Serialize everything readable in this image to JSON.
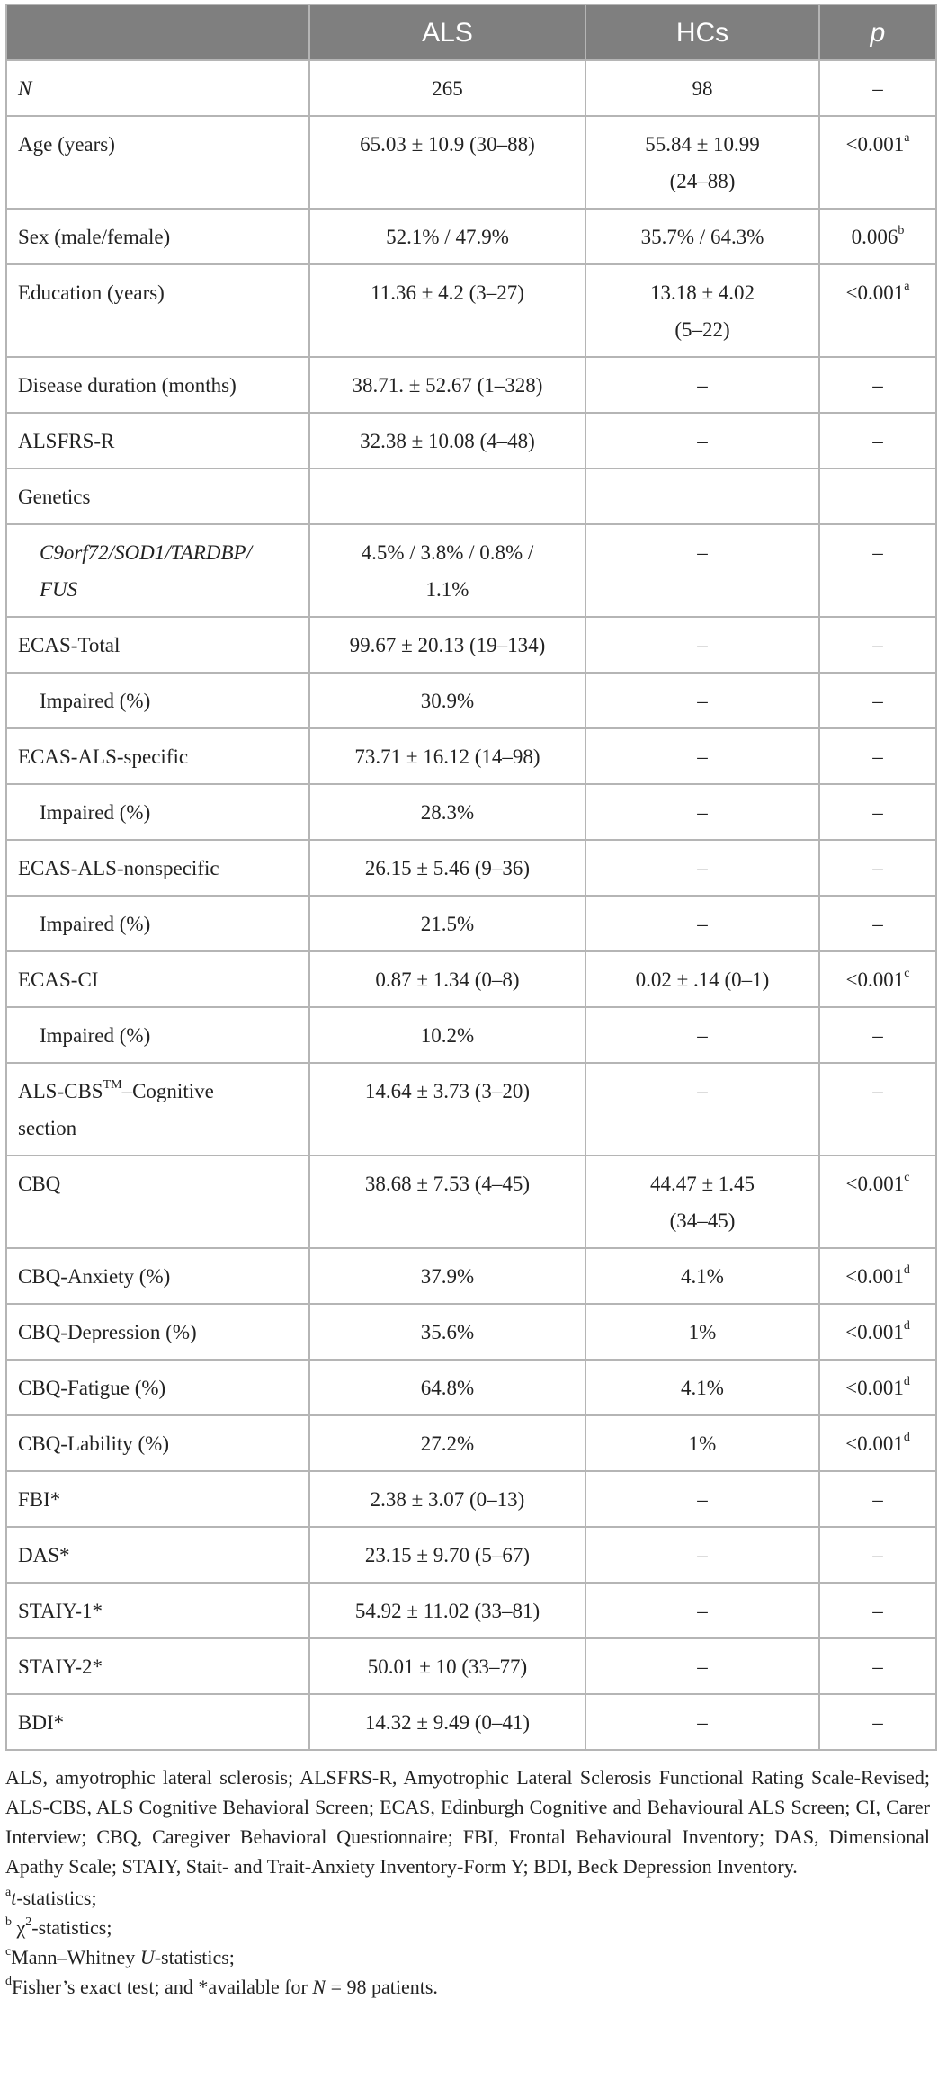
{
  "header": {
    "col0": "",
    "col1": "ALS",
    "col2": "HCs",
    "col3": "p"
  },
  "rows": [
    {
      "label": "N",
      "label_italic": true,
      "als": "265",
      "hc": "98",
      "p": "–",
      "p_sup": ""
    },
    {
      "label": "Age (years)",
      "als": "65.03 ± 10.9 (30–88)",
      "hc_line1": "55.84 ± 10.99",
      "hc_line2": "(24–88)",
      "p": "<0.001",
      "p_sup": "a"
    },
    {
      "label": "Sex (male/female)",
      "als": "52.1% / 47.9%",
      "hc": "35.7% / 64.3%",
      "p": "0.006",
      "p_sup": "b"
    },
    {
      "label": "Education (years)",
      "als": "11.36 ± 4.2 (3–27)",
      "hc_line1": "13.18 ± 4.02",
      "hc_line2": "(5–22)",
      "p": "<0.001",
      "p_sup": "a"
    },
    {
      "label": "Disease duration (months)",
      "als": "38.71. ± 52.67 (1–328)",
      "hc": "–",
      "p": "–"
    },
    {
      "label": "ALSFRS-R",
      "als": "32.38 ± 10.08 (4–48)",
      "hc": "–",
      "p": "–"
    },
    {
      "label": "Genetics",
      "als": "",
      "hc": "",
      "p": ""
    },
    {
      "label_line1": "C9orf72/SOD1/TARDBP/",
      "label_line2": "FUS",
      "als_line1": "4.5% / 3.8% / 0.8% /",
      "als_line2": "1.1%",
      "hc": "–",
      "p": "–"
    },
    {
      "label": "ECAS-Total",
      "als": "99.67 ± 20.13 (19–134)",
      "hc": "–",
      "p": "–"
    },
    {
      "label": "Impaired (%)",
      "als": "30.9%",
      "hc": "–",
      "p": "–"
    },
    {
      "label": "ECAS-ALS-specific",
      "als": "73.71 ± 16.12 (14–98)",
      "hc": "–",
      "p": "–"
    },
    {
      "label": "Impaired (%)",
      "als": "28.3%",
      "hc": "–",
      "p": "–"
    },
    {
      "label": "ECAS-ALS-nonspecific",
      "als": "26.15 ± 5.46 (9–36)",
      "hc": "–",
      "p": "–"
    },
    {
      "label": "Impaired (%)",
      "als": "21.5%",
      "hc": "–",
      "p": "–"
    },
    {
      "label": "ECAS-CI",
      "als": "0.87 ± 1.34 (0–8)",
      "hc": "0.02 ± .14 (0–1)",
      "p": "<0.001",
      "p_sup": "c"
    },
    {
      "label": "Impaired (%)",
      "als": "10.2%",
      "hc": "–",
      "p": "–"
    },
    {
      "label_pre": "ALS-CBS",
      "label_sup": "TM",
      "label_post": "–Cognitive",
      "label_line2": "section",
      "als": "14.64 ± 3.73 (3–20)",
      "hc": "–",
      "p": "–"
    },
    {
      "label": "CBQ",
      "als": "38.68 ± 7.53 (4–45)",
      "hc_line1": "44.47 ± 1.45",
      "hc_line2": "(34–45)",
      "p": "<0.001",
      "p_sup": "c"
    },
    {
      "label": "CBQ-Anxiety (%)",
      "als": "37.9%",
      "hc": "4.1%",
      "p": "<0.001",
      "p_sup": "d"
    },
    {
      "label": "CBQ-Depression (%)",
      "als": "35.6%",
      "hc": "1%",
      "p": "<0.001",
      "p_sup": "d"
    },
    {
      "label": "CBQ-Fatigue (%)",
      "als": "64.8%",
      "hc": "4.1%",
      "p": "<0.001",
      "p_sup": "d"
    },
    {
      "label": "CBQ-Lability (%)",
      "als": "27.2%",
      "hc": "1%",
      "p": "<0.001",
      "p_sup": "d"
    },
    {
      "label": "FBI*",
      "als": "2.38 ± 3.07 (0–13)",
      "hc": "–",
      "p": "–"
    },
    {
      "label": "DAS*",
      "als": "23.15 ± 9.70 (5–67)",
      "hc": "–",
      "p": "–"
    },
    {
      "label": "STAIY-1*",
      "als": "54.92 ± 11.02 (33–81)",
      "hc": "–",
      "p": "–"
    },
    {
      "label": "STAIY-2*",
      "als": "50.01 ± 10 (33–77)",
      "hc": "–",
      "p": "–"
    },
    {
      "label": "BDI*",
      "als": "14.32 ± 9.49 (0–41)",
      "hc": "–",
      "p": "–"
    }
  ],
  "footnotes": {
    "legend": "ALS, amyotrophic lateral sclerosis; ALSFRS-R, Amyotrophic Lateral Sclerosis Functional Rating Scale-Revised; ALS-CBS, ALS Cognitive Behavioral Screen; ECAS, Edinburgh Cognitive and Behavioural ALS Screen; CI, Carer Interview; CBQ, Caregiver Behavioral Questionnaire; FBI, Frontal Behavioural Inventory; DAS, Dimensional Apathy Scale; STAIY, Stait- and Trait-Anxiety Inventory-Form Y; BDI, Beck Depression Inventory.",
    "a_sup": "a",
    "a_it": "t",
    "a_text": "-statistics;",
    "b_sup": "b",
    "b_chi": "χ",
    "b_chi_sup": "2",
    "b_text": "-statistics;",
    "c_sup": "c",
    "c_pre": "Mann–Whitney ",
    "c_it": "U",
    "c_text": "-statistics;",
    "d_sup": "d",
    "d_pre": "Fisher’s exact test; and *available for ",
    "d_it": "N",
    "d_text": " = 98 patients."
  }
}
